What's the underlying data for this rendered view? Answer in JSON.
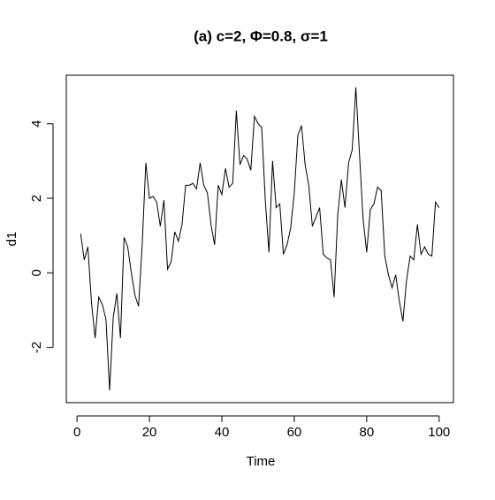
{
  "chart_data": {
    "type": "line",
    "title": "(a) c=2, Φ=0.8, σ=1",
    "x_label": "Time",
    "y_label": "d1",
    "x": [
      1,
      2,
      3,
      4,
      5,
      6,
      7,
      8,
      9,
      10,
      11,
      12,
      13,
      14,
      15,
      16,
      17,
      18,
      19,
      20,
      21,
      22,
      23,
      24,
      25,
      26,
      27,
      28,
      29,
      30,
      31,
      32,
      33,
      34,
      35,
      36,
      37,
      38,
      39,
      40,
      41,
      42,
      43,
      44,
      45,
      46,
      47,
      48,
      49,
      50,
      51,
      52,
      53,
      54,
      55,
      56,
      57,
      58,
      59,
      60,
      61,
      62,
      63,
      64,
      65,
      66,
      67,
      68,
      69,
      70,
      71,
      72,
      73,
      74,
      75,
      76,
      77,
      78,
      79,
      80,
      81,
      82,
      83,
      84,
      85,
      86,
      87,
      88,
      89,
      90,
      91,
      92,
      93,
      94,
      95,
      96,
      97,
      98,
      99,
      100
    ],
    "values": [
      1.05,
      0.35,
      0.7,
      -0.8,
      -1.75,
      -0.65,
      -0.85,
      -1.25,
      -3.15,
      -1.2,
      -0.55,
      -1.75,
      0.95,
      0.7,
      0.0,
      -0.6,
      -0.9,
      0.75,
      2.95,
      2.0,
      2.05,
      1.9,
      1.25,
      1.95,
      0.1,
      0.3,
      1.1,
      0.85,
      1.3,
      2.35,
      2.35,
      2.4,
      2.25,
      2.95,
      2.35,
      2.15,
      1.3,
      0.75,
      2.35,
      2.1,
      2.8,
      2.3,
      2.4,
      4.35,
      2.9,
      3.15,
      3.05,
      2.75,
      4.2,
      4.0,
      3.9,
      1.95,
      0.55,
      3.0,
      1.75,
      1.85,
      0.5,
      0.75,
      1.2,
      2.15,
      3.7,
      3.95,
      2.9,
      2.35,
      1.25,
      1.5,
      1.75,
      0.5,
      0.4,
      0.35,
      -0.65,
      1.55,
      2.5,
      1.75,
      2.95,
      3.3,
      4.98,
      3.2,
      1.45,
      0.55,
      1.7,
      1.85,
      2.3,
      2.2,
      0.45,
      -0.05,
      -0.4,
      -0.05,
      -0.75,
      -1.3,
      -0.2,
      0.45,
      0.35,
      1.3,
      0.5,
      0.7,
      0.5,
      0.45,
      1.9,
      1.75
    ],
    "color": "#000000",
    "xlim": [
      -2.96,
      103.96
    ],
    "ylim": [
      -3.48,
      5.3
    ],
    "xticks": [
      0,
      20,
      40,
      60,
      80,
      100
    ],
    "yticks": [
      -2,
      0,
      2,
      4
    ]
  }
}
